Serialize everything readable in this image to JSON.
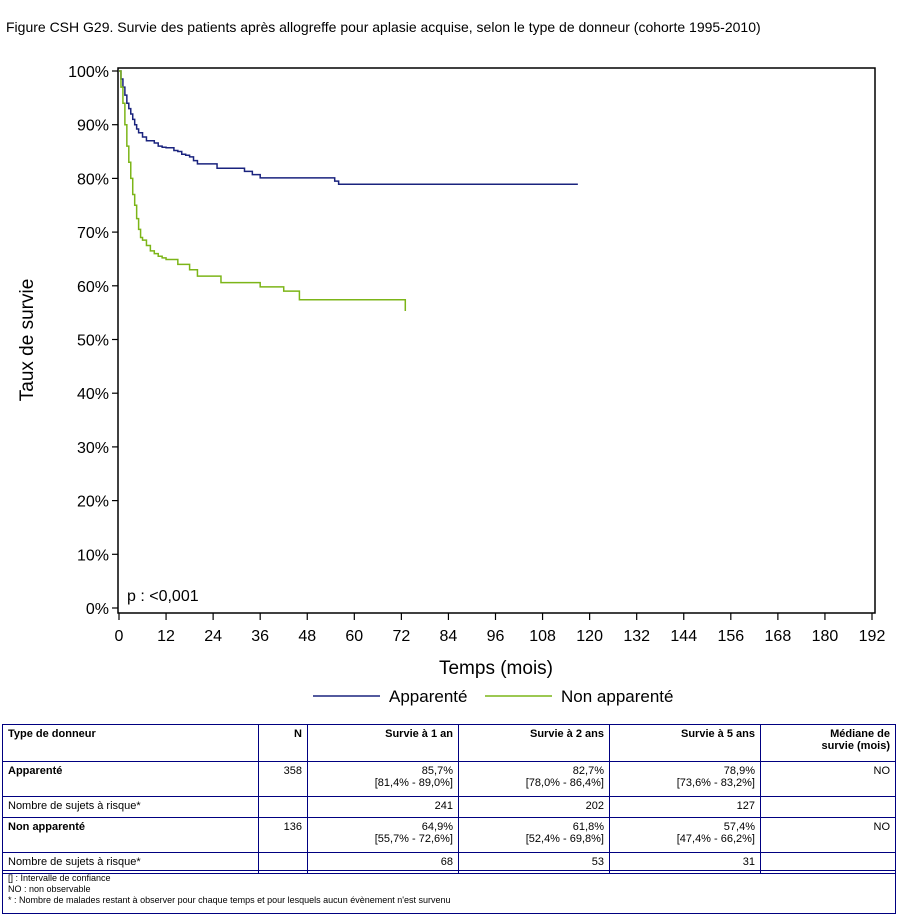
{
  "figure_title": "Figure CSH G29. Survie des patients après allogreffe pour aplasie acquise, selon le type de donneur (cohorte 1995-2010)",
  "chart_data": {
    "type": "line",
    "title": "Figure CSH G29. Survie des patients après allogreffe pour aplasie acquise, selon le type de donneur (cohorte 1995-2010)",
    "xlabel": "Temps (mois)",
    "ylabel": "Taux de survie",
    "xlim": [
      0,
      192
    ],
    "ylim": [
      0,
      100
    ],
    "xticks": [
      0,
      12,
      24,
      36,
      48,
      60,
      72,
      84,
      96,
      108,
      120,
      132,
      144,
      156,
      168,
      180,
      192
    ],
    "yticks": [
      "0%",
      "10%",
      "20%",
      "30%",
      "40%",
      "50%",
      "60%",
      "70%",
      "80%",
      "90%",
      "100%"
    ],
    "grid": false,
    "legend_position": "bottom",
    "annotation": "p : <0,001",
    "series": [
      {
        "name": "Apparenté",
        "color": "#1a237e",
        "step": true,
        "x": [
          0,
          0.5,
          1,
          1.5,
          2,
          2.5,
          3,
          3.5,
          4,
          4.5,
          5,
          6,
          7,
          8,
          9,
          10,
          11,
          12,
          14,
          15,
          16,
          17,
          18,
          19,
          20,
          24,
          25,
          30,
          32,
          34,
          36,
          48,
          55,
          56,
          60,
          72,
          84,
          96,
          108,
          117
        ],
        "y": [
          100,
          98.5,
          97,
          95.5,
          94,
          93,
          92,
          91,
          90,
          89.2,
          88.5,
          87.7,
          87,
          87,
          86.6,
          86,
          85.8,
          85.7,
          85.2,
          85,
          84.5,
          84.3,
          84,
          83.3,
          82.7,
          82.7,
          81.9,
          81.9,
          81.3,
          80.7,
          80.1,
          80.1,
          79.5,
          78.9,
          78.9,
          78.9,
          78.9,
          78.9,
          78.9,
          78.9
        ]
      },
      {
        "name": "Non apparenté",
        "color": "#7cb518",
        "step": true,
        "x": [
          0,
          0.5,
          1,
          1.5,
          2,
          2.5,
          3,
          3.5,
          4,
          4.5,
          5,
          5.5,
          6,
          7,
          8,
          9,
          10,
          11,
          12,
          15,
          18,
          20,
          26,
          36,
          42,
          46,
          60,
          70,
          73
        ],
        "y": [
          100,
          97,
          94,
          90,
          86,
          83,
          80,
          77,
          75,
          72.5,
          70.5,
          69,
          68.5,
          67.5,
          66.5,
          66,
          65.5,
          65.2,
          64.9,
          64,
          63,
          61.8,
          60.6,
          59.8,
          59,
          57.4,
          57.4,
          57.4,
          55.3
        ]
      }
    ]
  },
  "table": {
    "headers": {
      "type": "Type de donneur",
      "n": "N",
      "s1": "Survie à 1 an",
      "s2": "Survie à 2 ans",
      "s5": "Survie à 5 ans",
      "median_line1": "Médiane de",
      "median_line2": "survie (mois)"
    },
    "risk_label": "Nombre de sujets à risque*",
    "groups": [
      {
        "label": "Apparenté",
        "n": "358",
        "s1": "85,7%",
        "s1_ci": "[81,4% - 89,0%]",
        "s2": "82,7%",
        "s2_ci": "[78,0% - 86,4%]",
        "s5": "78,9%",
        "s5_ci": "[73,6% - 83,2%]",
        "median": "NO",
        "risk": [
          "241",
          "202",
          "127"
        ]
      },
      {
        "label": "Non apparenté",
        "n": "136",
        "s1": "64,9%",
        "s1_ci": "[55,7% - 72,6%]",
        "s2": "61,8%",
        "s2_ci": "[52,4% - 69,8%]",
        "s5": "57,4%",
        "s5_ci": "[47,4% - 66,2%]",
        "median": "NO",
        "risk": [
          "68",
          "53",
          "31"
        ]
      }
    ]
  },
  "footnotes": [
    "[] : Intervalle de confiance",
    "NO : non observable",
    "* : Nombre de malades restant à observer pour chaque temps et pour lesquels aucun évènement n'est survenu"
  ]
}
